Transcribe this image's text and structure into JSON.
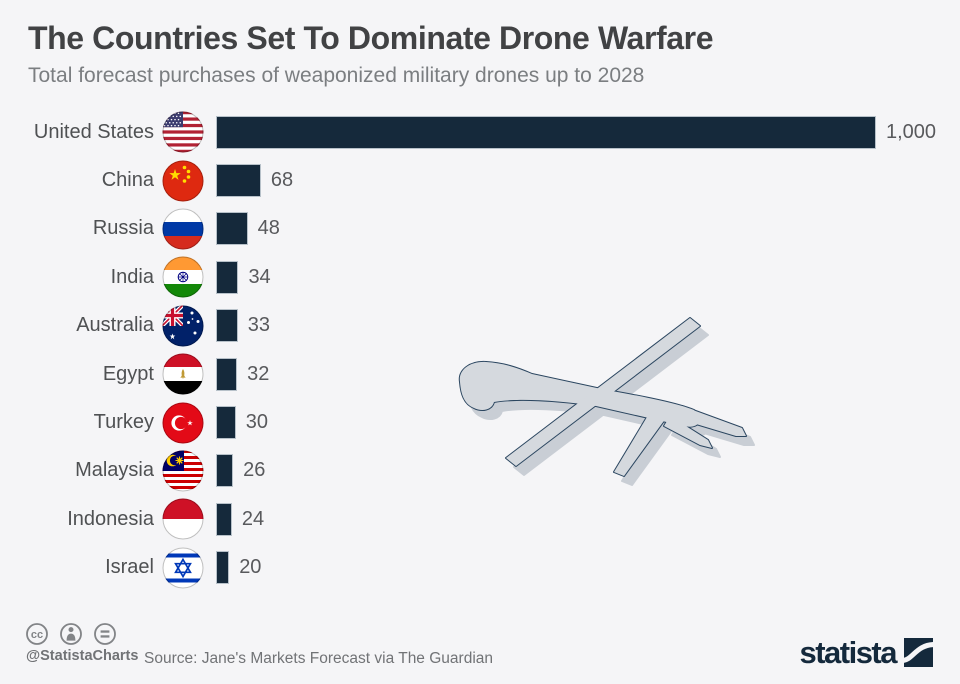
{
  "header": {
    "title": "The Countries Set To Dominate Drone Warfare",
    "subtitle": "Total forecast purchases of weaponized military drones up to 2028"
  },
  "chart_data": {
    "type": "bar",
    "orientation": "horizontal",
    "title": "The Countries Set To Dominate Drone Warfare",
    "subtitle": "Total forecast purchases of weaponized military drones up to 2028",
    "categories": [
      "United States",
      "China",
      "Russia",
      "India",
      "Australia",
      "Egypt",
      "Turkey",
      "Malaysia",
      "Indonesia",
      "Israel"
    ],
    "values": [
      1000,
      68,
      48,
      34,
      33,
      32,
      30,
      26,
      24,
      20
    ],
    "value_labels": [
      "1,000",
      "68",
      "48",
      "34",
      "33",
      "32",
      "30",
      "26",
      "24",
      "20"
    ],
    "xlabel": "",
    "ylabel": "",
    "xlim": [
      0,
      1000
    ],
    "grid": false,
    "legend": false,
    "bar_color": "#15293b",
    "flag_icons": [
      "flag-united-states-icon",
      "flag-china-icon",
      "flag-russia-icon",
      "flag-india-icon",
      "flag-australia-icon",
      "flag-egypt-icon",
      "flag-turkey-icon",
      "flag-malaysia-icon",
      "flag-indonesia-icon",
      "flag-israel-icon"
    ]
  },
  "illustration": {
    "name": "drone-icon"
  },
  "footer": {
    "handle": "@StatistaCharts",
    "source": "Source: Jane's Markets Forecast via The Guardian",
    "brand": "statista",
    "license_icons": [
      "cc-icon",
      "attribution-icon",
      "equals-icon"
    ]
  },
  "colors": {
    "background": "#f5f5f7",
    "bar": "#15293b",
    "bar_border": "#b7c1c9",
    "title": "#414244",
    "subtitle": "#7b7e81",
    "label": "#4f5153",
    "value": "#58595c",
    "footer_text": "#717376",
    "brand_navy": "#14293c",
    "drone_fill": "#d5d9de",
    "drone_outline": "#2b4660"
  }
}
